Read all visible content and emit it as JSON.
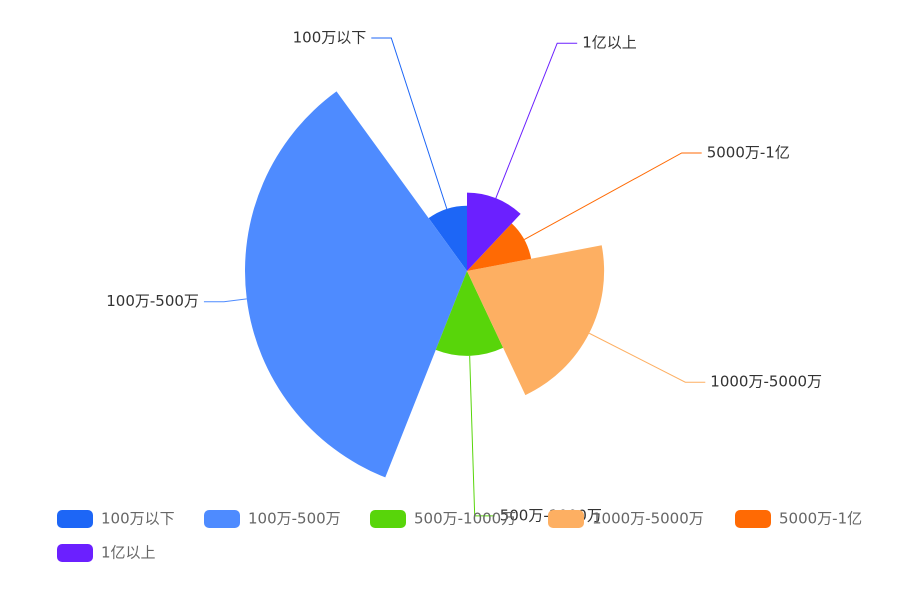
{
  "chart_data": {
    "type": "pie",
    "rose": true,
    "categories": [
      "100万以下",
      "100万-500万",
      "500万-1000万",
      "1000万-5000万",
      "5000万-1亿",
      "1亿以上"
    ],
    "values": [
      10,
      34,
      13,
      21,
      10,
      12
    ],
    "colors": [
      "#1d66f6",
      "#4e8bff",
      "#58d50a",
      "#fdaf62",
      "#ff6a04",
      "#6b20ff"
    ],
    "legend": "bottom"
  }
}
